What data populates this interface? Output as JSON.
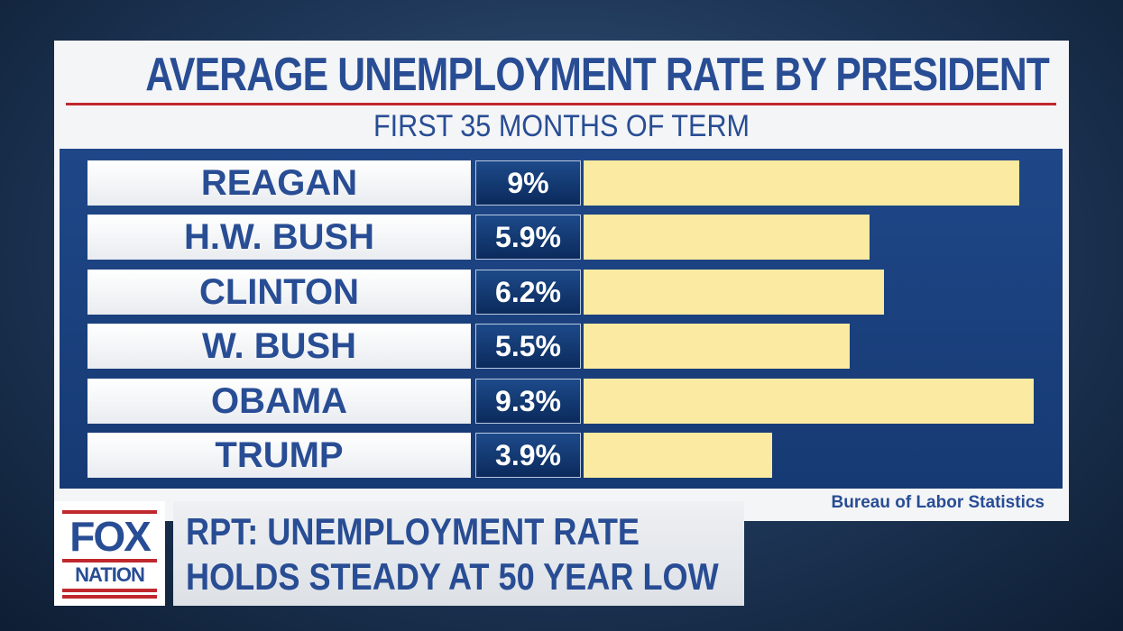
{
  "chart_data": {
    "type": "bar",
    "orientation": "horizontal",
    "title": "AVERAGE UNEMPLOYMENT RATE BY PRESIDENT",
    "subtitle": "FIRST 35 MONTHS OF TERM",
    "categories": [
      "REAGAN",
      "H.W. BUSH",
      "CLINTON",
      "W. BUSH",
      "OBAMA",
      "TRUMP"
    ],
    "values": [
      9,
      5.9,
      6.2,
      5.5,
      9.3,
      3.9
    ],
    "data_labels": [
      "9%",
      "5.9%",
      "6.2%",
      "5.5%",
      "9.3%",
      "3.9%"
    ],
    "unit": "%",
    "xlim": [
      0,
      9.3
    ],
    "grid": false,
    "source": "Bureau of Labor Statistics",
    "colors": {
      "bar": "#fbeaa1",
      "label_text": "#284d94",
      "value_box": "#0b2a5c",
      "background": "#1f4788"
    }
  },
  "lower_third": {
    "logo": {
      "line1": "FOX",
      "line2": "NATION"
    },
    "headline_line1": "RPT: UNEMPLOYMENT RATE",
    "headline_line2": "HOLDS STEADY AT 50 YEAR LOW"
  }
}
